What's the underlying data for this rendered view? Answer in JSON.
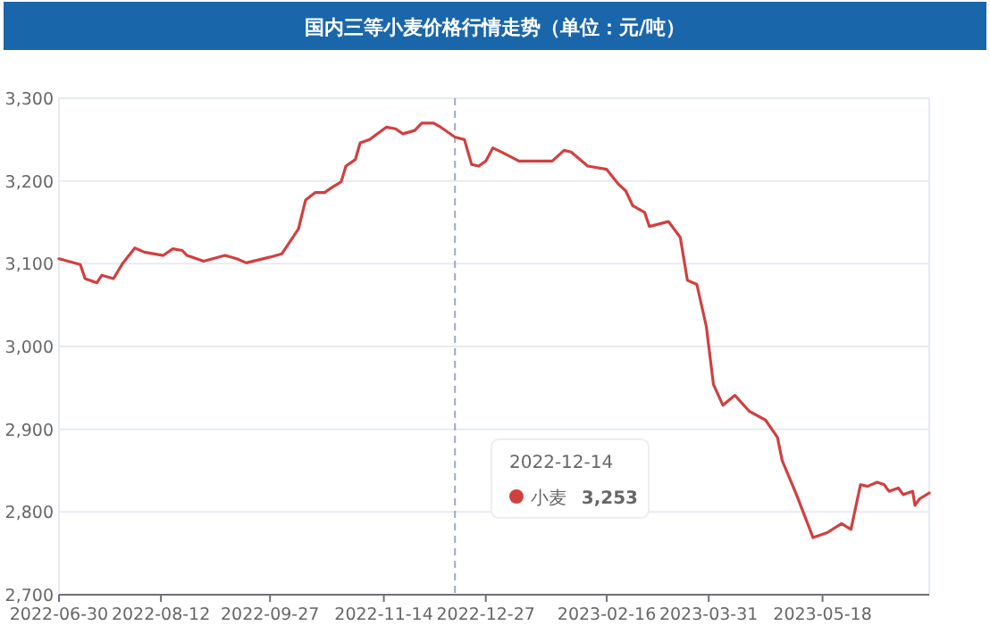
{
  "chart_data": {
    "type": "line",
    "title": "国内三等小麦价格行情走势（单位：元/吨）",
    "x": [
      "2022-06-30",
      "2022-07-09",
      "2022-07-11",
      "2022-07-16",
      "2022-07-18",
      "2022-07-23",
      "2022-07-27",
      "2022-08-01",
      "2022-08-05",
      "2022-08-13",
      "2022-08-17",
      "2022-08-21",
      "2022-08-23",
      "2022-08-30",
      "2022-09-08",
      "2022-09-13",
      "2022-09-17",
      "2022-09-27",
      "2022-10-02",
      "2022-10-09",
      "2022-10-12",
      "2022-10-16",
      "2022-10-20",
      "2022-10-23",
      "2022-10-27",
      "2022-10-29",
      "2022-11-02",
      "2022-11-04",
      "2022-11-08",
      "2022-11-15",
      "2022-11-19",
      "2022-11-22",
      "2022-11-27",
      "2022-11-30",
      "2022-12-05",
      "2022-12-08",
      "2022-12-14",
      "2022-12-18",
      "2022-12-21",
      "2022-12-24",
      "2022-12-27",
      "2022-12-30",
      "2023-01-04",
      "2023-01-10",
      "2023-01-24",
      "2023-01-29",
      "2023-02-01",
      "2023-02-08",
      "2023-02-16",
      "2023-02-21",
      "2023-02-24",
      "2023-02-27",
      "2023-03-04",
      "2023-03-06",
      "2023-03-14",
      "2023-03-19",
      "2023-03-22",
      "2023-03-26",
      "2023-03-30",
      "2023-04-02",
      "2023-04-06",
      "2023-04-11",
      "2023-04-17",
      "2023-04-24",
      "2023-04-29",
      "2023-05-01",
      "2023-05-07",
      "2023-05-14",
      "2023-05-20",
      "2023-05-26",
      "2023-05-30",
      "2023-06-03",
      "2023-06-06",
      "2023-06-10",
      "2023-06-13",
      "2023-06-15",
      "2023-06-19",
      "2023-06-21",
      "2023-06-25",
      "2023-06-26",
      "2023-06-28",
      "2023-07-02"
    ],
    "series": [
      {
        "name": "小麦",
        "color": "#d04040",
        "values": [
          3106,
          3099,
          3082,
          3077,
          3086,
          3082,
          3101,
          3119,
          3114,
          3110,
          3118,
          3116,
          3110,
          3103,
          3110,
          3106,
          3101,
          3108,
          3112,
          3142,
          3177,
          3186,
          3186,
          3192,
          3199,
          3218,
          3226,
          3246,
          3250,
          3265,
          3263,
          3257,
          3261,
          3270,
          3270,
          3265,
          3253,
          3250,
          3220,
          3218,
          3224,
          3240,
          3233,
          3224,
          3224,
          3237,
          3235,
          3218,
          3214,
          3196,
          3188,
          3170,
          3162,
          3145,
          3151,
          3132,
          3080,
          3075,
          3024,
          2954,
          2929,
          2941,
          2922,
          2911,
          2890,
          2862,
          2821,
          2769,
          2775,
          2786,
          2779,
          2833,
          2831,
          2836,
          2833,
          2825,
          2829,
          2821,
          2825,
          2808,
          2816,
          2823
        ]
      }
    ],
    "xlim": [
      "2022-06-30",
      "2023-07-02"
    ],
    "xticks": [
      "2022-06-30",
      "2022-08-12",
      "2022-09-27",
      "2022-11-14",
      "2022-12-27",
      "2023-02-16",
      "2023-03-31",
      "2023-05-18"
    ],
    "ylim": [
      2700,
      3300
    ],
    "yticks": [
      {
        "value": 2700,
        "label": "2,700"
      },
      {
        "value": 2800,
        "label": "2,800"
      },
      {
        "value": 2900,
        "label": "2,900"
      },
      {
        "value": 3000,
        "label": "3,000"
      },
      {
        "value": 3100,
        "label": "3,100"
      },
      {
        "value": 3200,
        "label": "3,200"
      },
      {
        "value": 3300,
        "label": "3,300"
      }
    ],
    "grid": "y",
    "legend": "bottom",
    "line_style": "solid",
    "ref_lines": [
      {
        "axis": "x",
        "value": "2022-12-14",
        "line_style": "dashed",
        "color": "#a0a8c0"
      }
    ],
    "annotations": [
      "2022-12-14",
      "3,253"
    ]
  }
}
